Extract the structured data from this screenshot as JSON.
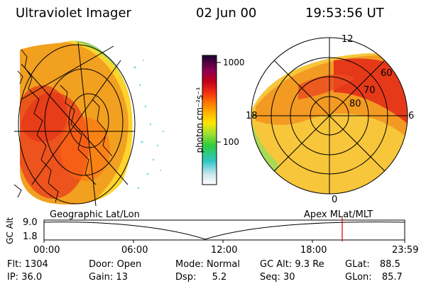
{
  "header": {
    "title": "Ultraviolet Imager",
    "date": "02 Jun 00",
    "time": "19:53:56 UT"
  },
  "colorbar": {
    "unit_label": "photon cm⁻²s⁻¹",
    "tick_1000": "1000",
    "tick_100": "100"
  },
  "polar_plot": {
    "mlt_top": "12",
    "mlt_left": "18",
    "mlt_right": "6",
    "mlt_bottom": "0",
    "lat_60": "60",
    "lat_70": "70",
    "lat_80": "80"
  },
  "left_image": {
    "projection_label": "Geographic Lat/Lon"
  },
  "timeline": {
    "y_label": "GC Alt",
    "y_top": "9.0",
    "y_bottom": "1.8",
    "right_label": "Apex MLat/MLT",
    "x_ticks": [
      "00:00",
      "06:00",
      "12:00",
      "18:00",
      "23:59"
    ],
    "current_marker_color": "#d10000"
  },
  "status": {
    "flt_label": "Flt:",
    "flt_value": "1304",
    "ip_label": "IP:",
    "ip_value": "36.0",
    "door_label": "Door:",
    "door_value": "Open",
    "gain_label": "Gain:",
    "gain_value": "13",
    "mode_label": "Mode:",
    "mode_value": "Normal",
    "dsp_label": "Dsp:",
    "dsp_value": "5.2",
    "gcalt_label": "GC Alt:",
    "gcalt_value": "9.3 Re",
    "seq_label": "Seq:",
    "seq_value": "30",
    "glat_label": "GLat:",
    "glat_value": "88.5",
    "glon_label": "GLon:",
    "glon_value": "85.7"
  }
}
